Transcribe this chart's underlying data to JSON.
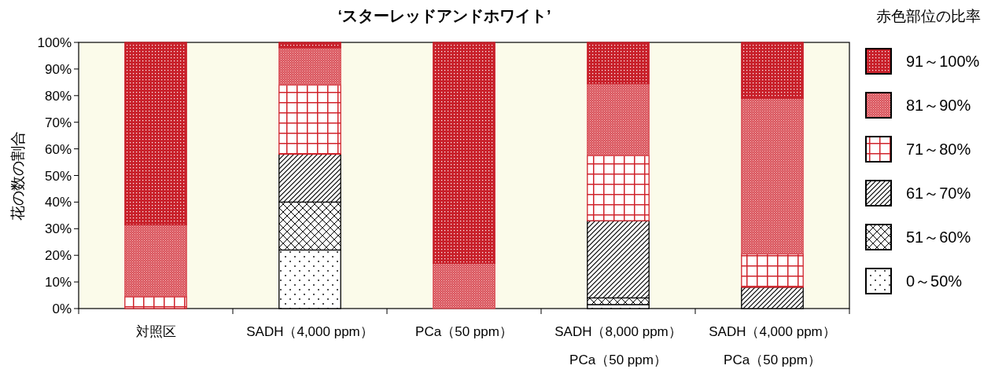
{
  "chart_data": {
    "type": "bar",
    "stacked": true,
    "title": "‘スターレッドアンドホワイト’",
    "ylabel": "花の数の割合",
    "legend_title": "赤色部位の比率",
    "legend": "right",
    "categories": [
      "対照区",
      "SADH（4,000 ppm）",
      "PCa（50 ppm）",
      "SADH（8,000 ppm）\nPCa（50 ppm）",
      "SADH（4,000 ppm）\nPCa（50 ppm）"
    ],
    "series": [
      {
        "name": "0～50%",
        "color": "#000000",
        "values": [
          0,
          22,
          0,
          1.5,
          0
        ]
      },
      {
        "name": "51～60%",
        "color": "#000000",
        "values": [
          0,
          18,
          0,
          2.5,
          0
        ]
      },
      {
        "name": "61～70%",
        "color": "#000000",
        "values": [
          0,
          18,
          0,
          29,
          8
        ]
      },
      {
        "name": "71～80%",
        "color": "#d0232b",
        "values": [
          4.5,
          26,
          0,
          24.5,
          12.5
        ]
      },
      {
        "name": "81～90%",
        "color": "#d95058",
        "values": [
          27,
          14,
          17,
          27,
          58.5
        ]
      },
      {
        "name": "91～100%",
        "color": "#c8202a",
        "values": [
          68.5,
          2,
          83,
          15.5,
          21
        ]
      }
    ],
    "ylim": [
      0,
      100
    ],
    "yticks": [
      {
        "value": 0,
        "label": "0%"
      },
      {
        "value": 10,
        "label": "10%"
      },
      {
        "value": 20,
        "label": "20%"
      },
      {
        "value": 30,
        "label": "30%"
      },
      {
        "value": 40,
        "label": "40%"
      },
      {
        "value": 50,
        "label": "50%"
      },
      {
        "value": 60,
        "label": "60%"
      },
      {
        "value": 70,
        "label": "70%"
      },
      {
        "value": 80,
        "label": "80%"
      },
      {
        "value": 90,
        "label": "90%"
      },
      {
        "value": 100,
        "label": "100%"
      }
    ],
    "grid": false
  }
}
